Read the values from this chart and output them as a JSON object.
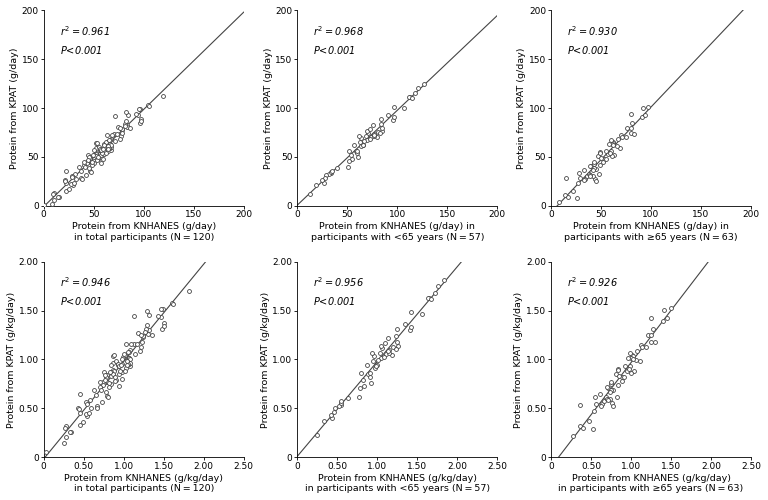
{
  "panels": [
    {
      "r2": "0.961",
      "p": "<0.001",
      "xlabel_line1": "Protein from KNHANES (g/day)",
      "xlabel_line2": "in total participants (N = 120)",
      "ylabel": "Protein from KPAT (g/day)",
      "xlim": [
        0,
        200
      ],
      "ylim": [
        0,
        200
      ],
      "xticks": [
        0,
        50,
        100,
        150,
        200
      ],
      "yticks": [
        0,
        50,
        100,
        150,
        200
      ],
      "seed": 42,
      "n": 120,
      "slope": 0.97,
      "intercept": 0,
      "noise": 6,
      "xmean": 58,
      "xstd": 25
    },
    {
      "r2": "0.968",
      "p": "<0.001",
      "xlabel_line1": "Protein from KNHANES (g/day) in",
      "xlabel_line2": "participants with <65 years (N = 57)",
      "ylabel": "Protein from KPAT (g/day)",
      "xlim": [
        0,
        200
      ],
      "ylim": [
        0,
        200
      ],
      "xticks": [
        0,
        50,
        100,
        150,
        200
      ],
      "yticks": [
        0,
        50,
        100,
        150,
        200
      ],
      "seed": 7,
      "n": 57,
      "slope": 0.97,
      "intercept": 0,
      "noise": 5,
      "xmean": 70,
      "xstd": 25
    },
    {
      "r2": "0.930",
      "p": "<0.001",
      "xlabel_line1": "Protein from KNHANES (g/day) in",
      "xlabel_line2": "participants with ≥65 years (N = 63)",
      "ylabel": "Protein from KPAT (g/day)",
      "xlim": [
        0,
        200
      ],
      "ylim": [
        0,
        200
      ],
      "xticks": [
        0,
        50,
        100,
        150,
        200
      ],
      "yticks": [
        0,
        50,
        100,
        150,
        200
      ],
      "seed": 13,
      "n": 63,
      "slope": 0.97,
      "intercept": 0,
      "noise": 8,
      "xmean": 50,
      "xstd": 22
    },
    {
      "r2": "0.946",
      "p": "<0.001",
      "xlabel_line1": "Protein from KNHANES (g/kg/day)",
      "xlabel_line2": "in total participants (N = 120)",
      "ylabel": "Protein from KPAT (g/kg/day)",
      "xlim": [
        0,
        2.5
      ],
      "ylim": [
        0,
        2.0
      ],
      "xticks": [
        0,
        0.5,
        1.0,
        1.5,
        2.0,
        2.5
      ],
      "yticks": [
        0,
        0.5,
        1.0,
        1.5,
        2.0
      ],
      "seed": 42,
      "n": 120,
      "slope": 0.97,
      "intercept": 0,
      "noise": 0.09,
      "xmean": 0.95,
      "xstd": 0.35
    },
    {
      "r2": "0.956",
      "p": "<0.001",
      "xlabel_line1": "Protein from KNHANES (g/kg/day)",
      "xlabel_line2": "in participants with <65 years (N = 57)",
      "ylabel": "Protein from KPAT (g/kg/day)",
      "xlim": [
        0,
        2.5
      ],
      "ylim": [
        0,
        2.0
      ],
      "xticks": [
        0,
        0.5,
        1.0,
        1.5,
        2.0,
        2.5
      ],
      "yticks": [
        0,
        0.5,
        1.0,
        1.5,
        2.0
      ],
      "seed": 7,
      "n": 57,
      "slope": 0.97,
      "intercept": 0,
      "noise": 0.07,
      "xmean": 1.05,
      "xstd": 0.35
    },
    {
      "r2": "0.926",
      "p": "<0.001",
      "xlabel_line1": "Protein from KNHANES (g/kg/day)",
      "xlabel_line2": "in participants with ≥65 years (N = 63)",
      "ylabel": "Protein from KPAT (g/kg/day)",
      "xlim": [
        0,
        2.5
      ],
      "ylim": [
        0,
        2.0
      ],
      "xticks": [
        0,
        0.5,
        1.0,
        1.5,
        2.0,
        2.5
      ],
      "yticks": [
        0,
        0.5,
        1.0,
        1.5,
        2.0
      ],
      "seed": 13,
      "n": 63,
      "slope": 0.97,
      "intercept": 0,
      "noise": 0.1,
      "xmean": 0.85,
      "xstd": 0.3
    }
  ],
  "annotation_fontsize": 7.0,
  "label_fontsize": 6.8,
  "tick_fontsize": 6.5,
  "marker_size": 2.8,
  "line_color": "#444444",
  "marker_color": "white",
  "marker_edge_color": "#444444",
  "marker_lw": 0.6,
  "background_color": "#ffffff"
}
